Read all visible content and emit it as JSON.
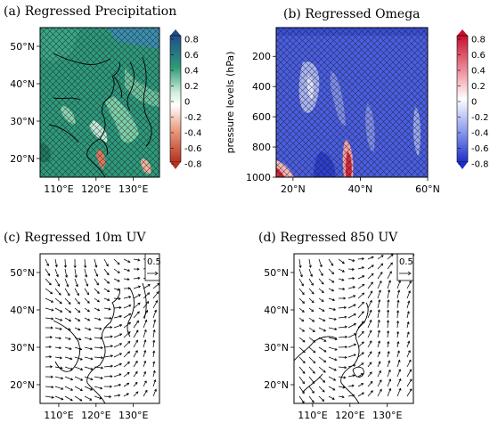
{
  "colors": {
    "precip_positive": "#2e9a7a",
    "precip_light": "#c7ead8",
    "precip_negative": "#d24a30",
    "omega_negative": "#3d52d6",
    "omega_light": "#a9b5f0",
    "omega_positive": "#d8283a"
  },
  "chart_data": [
    {
      "id": "a",
      "type": "heatmap",
      "title": "(a) Regressed Precipitation",
      "x_ticks": [
        "110°E",
        "120°E",
        "130°E"
      ],
      "y_ticks": [
        "20°N",
        "30°N",
        "40°N",
        "50°N"
      ],
      "xlim_deg_e": [
        105,
        137
      ],
      "ylim_deg_n": [
        15,
        55
      ],
      "colorbar": {
        "labels": [
          "0.8",
          "0.6",
          "0.4",
          "0.2",
          "0",
          "-0.2",
          "-0.4",
          "-0.6",
          "-0.8"
        ],
        "range": [
          -0.8,
          0.8
        ]
      },
      "hatching": "significant areas"
    },
    {
      "id": "b",
      "type": "heatmap",
      "title": "(b) Regressed Omega",
      "ylabel": "pressure levels (hPa)",
      "x_ticks": [
        "20°N",
        "40°N",
        "60°N"
      ],
      "y_ticks": [
        "200",
        "400",
        "600",
        "800",
        "1000"
      ],
      "xlim_deg_n": [
        15,
        60
      ],
      "ylim_hpa": [
        1000,
        10
      ],
      "colorbar": {
        "labels": [
          "0.8",
          "0.6",
          "0.4",
          "0.2",
          "0",
          "-0.2",
          "-0.4",
          "-0.6",
          "-0.8"
        ],
        "range": [
          -0.8,
          0.8
        ]
      }
    },
    {
      "id": "c",
      "type": "vector",
      "title": "(c) Regressed 10m UV",
      "x_ticks": [
        "110°E",
        "120°E",
        "130°E"
      ],
      "y_ticks": [
        "20°N",
        "30°N",
        "40°N",
        "50°N"
      ],
      "xlim_deg_e": [
        105,
        137
      ],
      "ylim_deg_n": [
        15,
        55
      ],
      "reference_vector": "0.5"
    },
    {
      "id": "d",
      "type": "vector",
      "title": "(d) Regressed 850 UV",
      "x_ticks": [
        "110°E",
        "120°E",
        "130°E"
      ],
      "y_ticks": [
        "20°N",
        "30°N",
        "40°N",
        "50°N"
      ],
      "xlim_deg_e": [
        105,
        137
      ],
      "ylim_deg_n": [
        15,
        55
      ],
      "reference_vector": "0.5"
    }
  ]
}
